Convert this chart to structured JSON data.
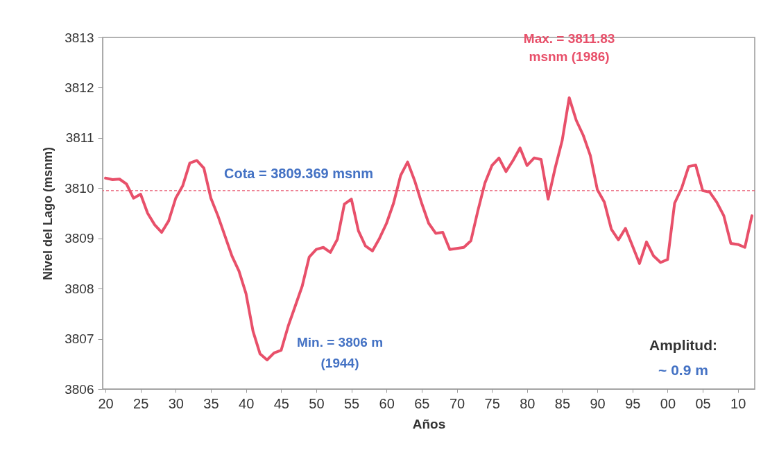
{
  "chart_data": {
    "type": "line",
    "xlabel": "Años",
    "ylabel": "Nivel del Lago (msnm)",
    "x": [
      1920,
      1921,
      1922,
      1923,
      1924,
      1925,
      1926,
      1927,
      1928,
      1929,
      1930,
      1931,
      1932,
      1933,
      1934,
      1935,
      1936,
      1937,
      1938,
      1939,
      1940,
      1941,
      1942,
      1943,
      1944,
      1945,
      1946,
      1947,
      1948,
      1949,
      1950,
      1951,
      1952,
      1953,
      1954,
      1955,
      1956,
      1957,
      1958,
      1959,
      1960,
      1961,
      1962,
      1963,
      1964,
      1965,
      1966,
      1967,
      1968,
      1969,
      1970,
      1971,
      1972,
      1973,
      1974,
      1975,
      1976,
      1977,
      1978,
      1979,
      1980,
      1981,
      1982,
      1983,
      1984,
      1985,
      1986,
      1987,
      1988,
      1989,
      1990,
      1991,
      1992,
      1993,
      1994,
      1995,
      1996,
      1997,
      1998,
      1999,
      2000,
      2001,
      2002,
      2003,
      2004,
      2005,
      2006,
      2007,
      2008,
      2009,
      2010,
      2011,
      2012
    ],
    "series": [
      {
        "color": "#e8506a",
        "values": [
          3810.2,
          3810.17,
          3810.18,
          3810.08,
          3809.8,
          3809.88,
          3809.5,
          3809.27,
          3809.12,
          3809.35,
          3809.8,
          3810.05,
          3810.5,
          3810.55,
          3810.4,
          3809.8,
          3809.45,
          3809.05,
          3808.65,
          3808.35,
          3807.9,
          3807.15,
          3806.7,
          3806.58,
          3806.72,
          3806.77,
          3807.25,
          3807.65,
          3808.05,
          3808.63,
          3808.78,
          3808.82,
          3808.72,
          3808.98,
          3809.68,
          3809.78,
          3809.15,
          3808.85,
          3808.75,
          3809.0,
          3809.3,
          3809.7,
          3810.25,
          3810.52,
          3810.15,
          3809.7,
          3809.3,
          3809.1,
          3809.12,
          3808.78,
          3808.8,
          3808.82,
          3808.95,
          3809.55,
          3810.1,
          3810.45,
          3810.6,
          3810.33,
          3810.55,
          3810.8,
          3810.45,
          3810.6,
          3810.57,
          3809.78,
          3810.4,
          3810.95,
          3811.8,
          3811.35,
          3811.05,
          3810.65,
          3809.97,
          3809.72,
          3809.18,
          3808.97,
          3809.2,
          3808.85,
          3808.5,
          3808.93,
          3808.65,
          3808.52,
          3808.58,
          3809.7,
          3810.0,
          3810.43,
          3810.46,
          3809.95,
          3809.92,
          3809.72,
          3809.45,
          3808.9,
          3808.88,
          3808.82,
          3809.45
        ]
      }
    ],
    "xlim": [
      1919.6,
      2012.4
    ],
    "xticks": [
      {
        "value": 1920,
        "label": "20"
      },
      {
        "value": 1925,
        "label": "25"
      },
      {
        "value": 1930,
        "label": "30"
      },
      {
        "value": 1935,
        "label": "35"
      },
      {
        "value": 1940,
        "label": "40"
      },
      {
        "value": 1945,
        "label": "45"
      },
      {
        "value": 1950,
        "label": "50"
      },
      {
        "value": 1955,
        "label": "55"
      },
      {
        "value": 1960,
        "label": "60"
      },
      {
        "value": 1965,
        "label": "65"
      },
      {
        "value": 1970,
        "label": "70"
      },
      {
        "value": 1975,
        "label": "75"
      },
      {
        "value": 1980,
        "label": "80"
      },
      {
        "value": 1985,
        "label": "85"
      },
      {
        "value": 1990,
        "label": "90"
      },
      {
        "value": 1995,
        "label": "95"
      },
      {
        "value": 2000,
        "label": "00"
      },
      {
        "value": 2005,
        "label": "05"
      },
      {
        "value": 2010,
        "label": "10"
      }
    ],
    "ylim": [
      3806,
      3813
    ],
    "yticks": [
      3806,
      3807,
      3808,
      3809,
      3810,
      3811,
      3812,
      3813
    ],
    "grid": false,
    "marker": "none",
    "line_style": "solid",
    "ref_lines": [
      {
        "axis": "y",
        "value": 3809.95,
        "color": "#e8506a",
        "line_style": "dashed"
      }
    ],
    "annotations": [
      {
        "text": "Max. = 3811.83\nmsnm (1986)",
        "x": 1986,
        "y": 3811.83
      },
      "Min. = 3806 m\n(1944)",
      "Cota = 3809.369 msnm",
      "Amplitud:",
      "~ 0.9 m"
    ]
  }
}
